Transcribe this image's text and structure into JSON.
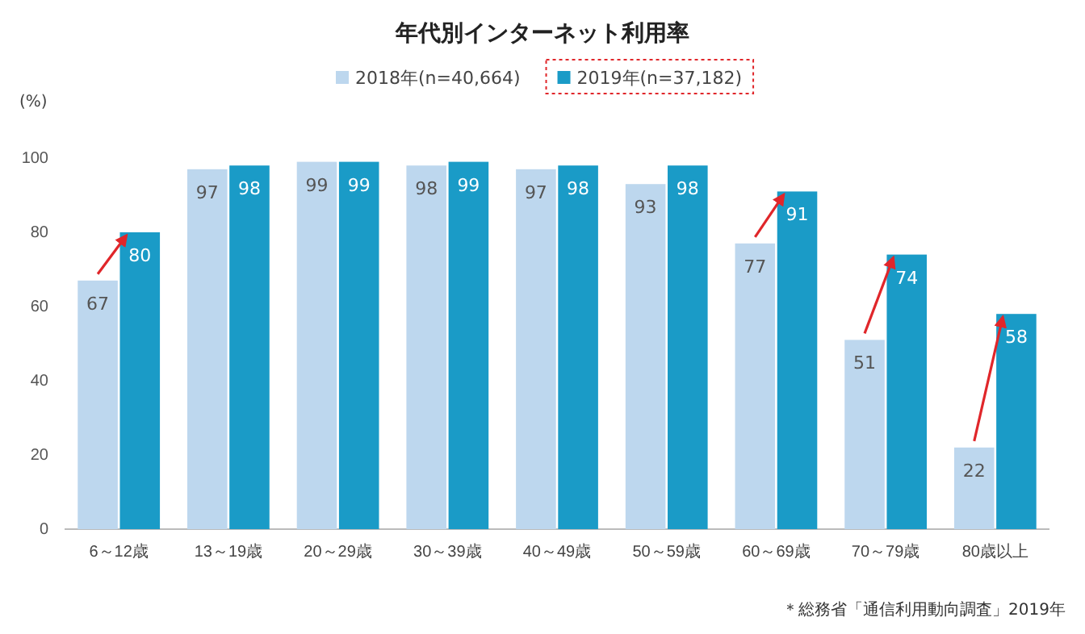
{
  "chart_data": {
    "type": "bar",
    "title": "年代別インターネット利用率",
    "ylabel": "(%)",
    "categories": [
      "6～12歳",
      "13～19歳",
      "20～29歳",
      "30～39歳",
      "40～49歳",
      "50～59歳",
      "60～69歳",
      "70～79歳",
      "80歳以上"
    ],
    "series": [
      {
        "name": "2018年(n=40,664)",
        "color": "#bdd7ee",
        "values": [
          67,
          97,
          99,
          98,
          97,
          93,
          77,
          51,
          22
        ]
      },
      {
        "name": "2019年(n=37,182)",
        "color": "#1a9bc7",
        "values": [
          80,
          98,
          99,
          99,
          98,
          98,
          91,
          74,
          58
        ]
      }
    ],
    "ylim": [
      0,
      100
    ],
    "yticks": [
      0,
      20,
      40,
      60,
      80,
      100
    ],
    "grid": false,
    "legend": "top",
    "data_labels": true,
    "annotations": [
      "＊総務省「通信利用動向調査」2019年"
    ]
  }
}
